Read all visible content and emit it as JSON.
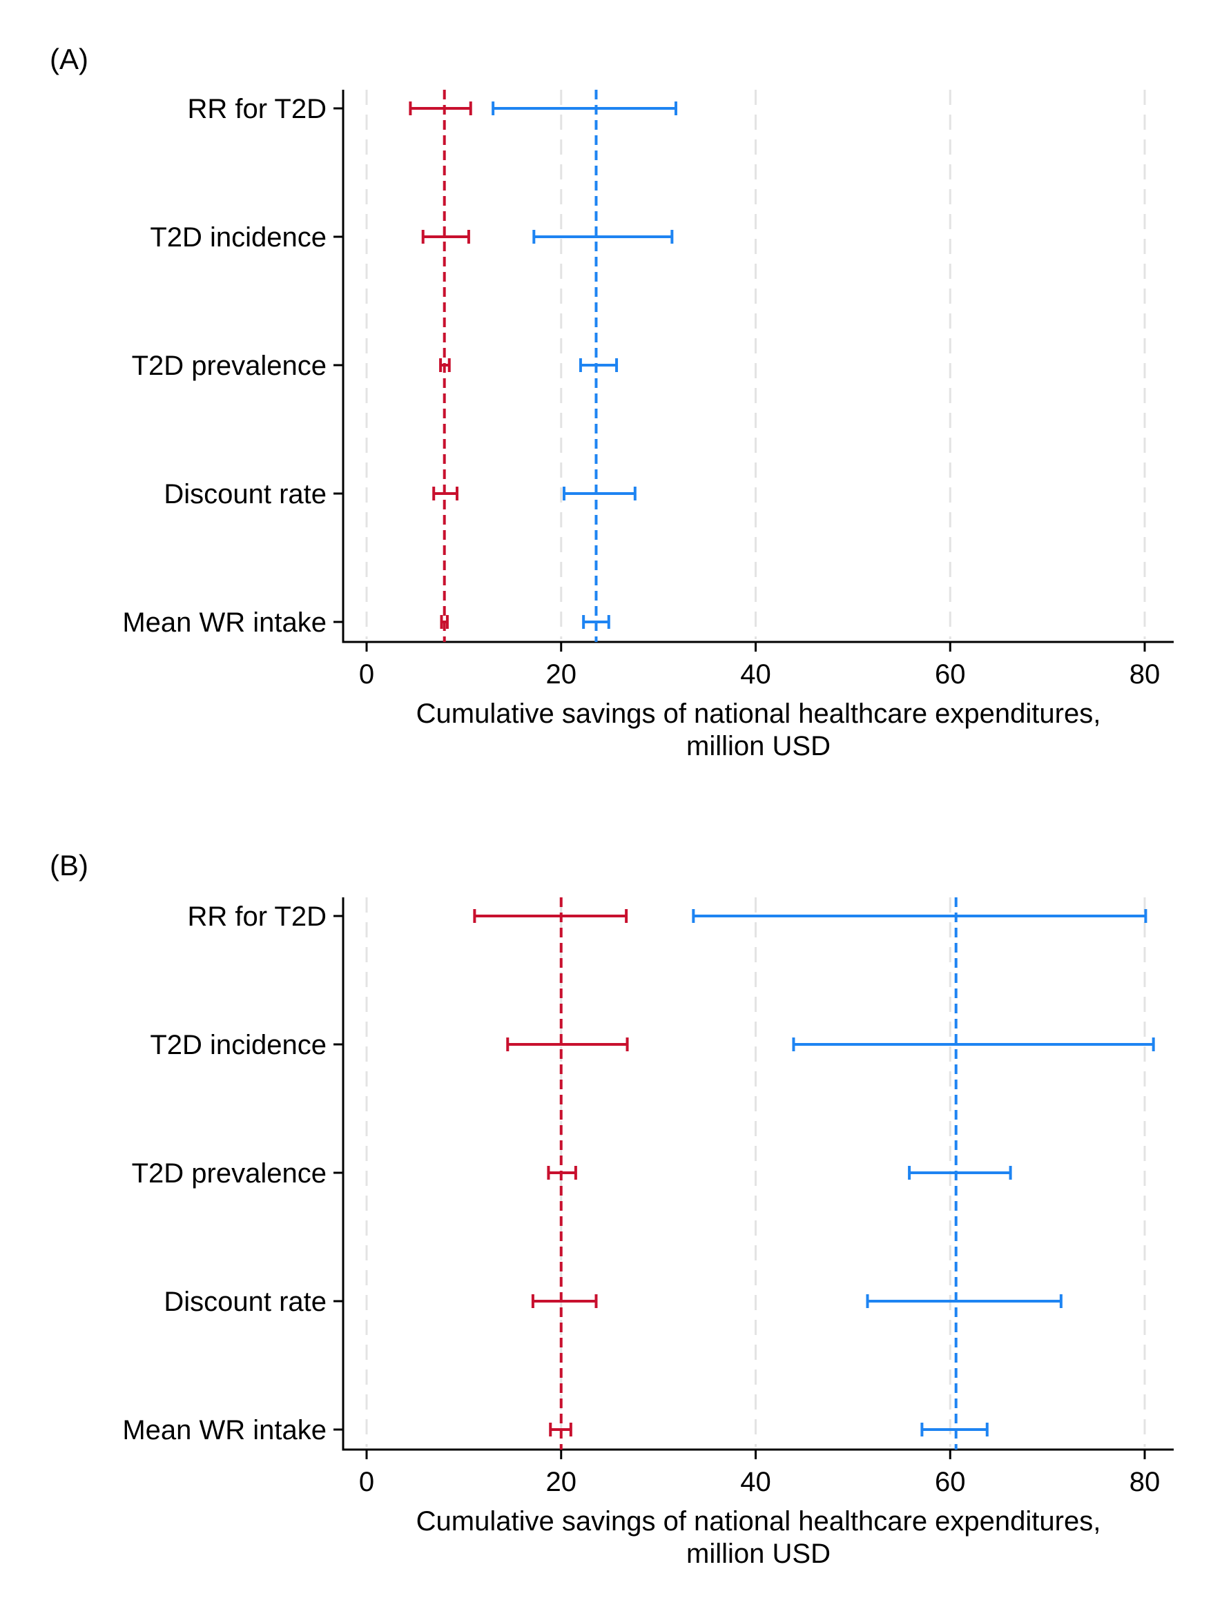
{
  "chart_data": [
    {
      "type": "errorbar",
      "panel_label": "(A)",
      "xlabel_line1": "Cumulative savings of national healthcare expenditures,",
      "xlabel_line2": "million USD",
      "xlim": [
        -3,
        83
      ],
      "xticks": [
        0,
        20,
        40,
        60,
        80
      ],
      "tick_labels": [
        "0",
        "20",
        "40",
        "60",
        "80"
      ],
      "categories": [
        "RR for T2D",
        "T2D incidence",
        "T2D prevalence",
        "Discount rate",
        "Mean WR intake"
      ],
      "series": [
        {
          "name": "red",
          "color": "#c8102e",
          "reference": 8.0,
          "low": [
            4.5,
            5.8,
            7.6,
            6.9,
            7.7
          ],
          "high": [
            10.7,
            10.5,
            8.5,
            9.3,
            8.3
          ]
        },
        {
          "name": "blue",
          "color": "#1e84f2",
          "reference": 23.6,
          "low": [
            13.0,
            17.2,
            22.0,
            20.3,
            22.3
          ],
          "high": [
            31.8,
            31.4,
            25.7,
            27.6,
            24.9
          ]
        }
      ]
    },
    {
      "type": "errorbar",
      "panel_label": "(B)",
      "xlabel_line1": "Cumulative savings of national healthcare expenditures,",
      "xlabel_line2": "million USD",
      "xlim": [
        -3,
        83
      ],
      "xticks": [
        0,
        20,
        40,
        60,
        80
      ],
      "tick_labels": [
        "0",
        "20",
        "40",
        "60",
        "80"
      ],
      "categories": [
        "RR for T2D",
        "T2D incidence",
        "T2D prevalence",
        "Discount rate",
        "Mean WR intake"
      ],
      "series": [
        {
          "name": "red",
          "color": "#c8102e",
          "reference": 20.0,
          "low": [
            11.1,
            14.5,
            18.7,
            17.1,
            18.9
          ],
          "high": [
            26.7,
            26.8,
            21.5,
            23.6,
            21.0
          ]
        },
        {
          "name": "blue",
          "color": "#1e84f2",
          "reference": 60.6,
          "low": [
            33.6,
            43.9,
            55.8,
            51.5,
            57.1
          ],
          "high": [
            80.1,
            80.9,
            66.2,
            71.4,
            63.8
          ]
        }
      ]
    }
  ]
}
